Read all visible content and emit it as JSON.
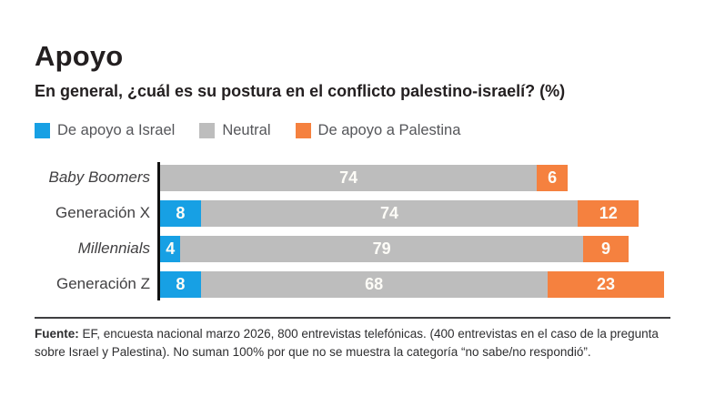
{
  "header": {
    "title": "Apoyo",
    "subtitle": "En general, ¿cuál es su postura en el conflicto palestino-israelí? (%)"
  },
  "chart_data": {
    "type": "bar",
    "orientation": "horizontal",
    "stacked": true,
    "xlim": [
      0,
      100
    ],
    "grid": false,
    "legend_position": "top",
    "value_labels": "inside",
    "categories": [
      {
        "label": "Baby Boomers",
        "italic": true
      },
      {
        "label": "Generación X",
        "italic": false
      },
      {
        "label": "Millennials",
        "italic": true
      },
      {
        "label": "Generación Z",
        "italic": false
      }
    ],
    "series": [
      {
        "name": "De apoyo a Israel",
        "color": "#17a0e4",
        "values": [
          null,
          8,
          4,
          8
        ]
      },
      {
        "name": "Neutral",
        "color": "#bdbdbd",
        "values": [
          74,
          74,
          79,
          68
        ]
      },
      {
        "name": "De apoyo a Palestina",
        "color": "#f5813f",
        "values": [
          6,
          12,
          9,
          23
        ]
      }
    ]
  },
  "footer": {
    "source_label": "Fuente:",
    "source_text": "EF, encuesta nacional marzo 2026, 800 entrevistas telefónicas. (400 entrevistas en el caso de la pregunta sobre Israel y Palestina). No suman 100% por que no se muestra la categoría “no sabe/no respondió”."
  },
  "colors": {
    "support_israel": "#17a0e4",
    "neutral": "#bdbdbd",
    "support_palestine": "#f5813f",
    "axis": "#111111",
    "title_text": "#231f20",
    "bar_value_text": "#fdfcf7"
  }
}
